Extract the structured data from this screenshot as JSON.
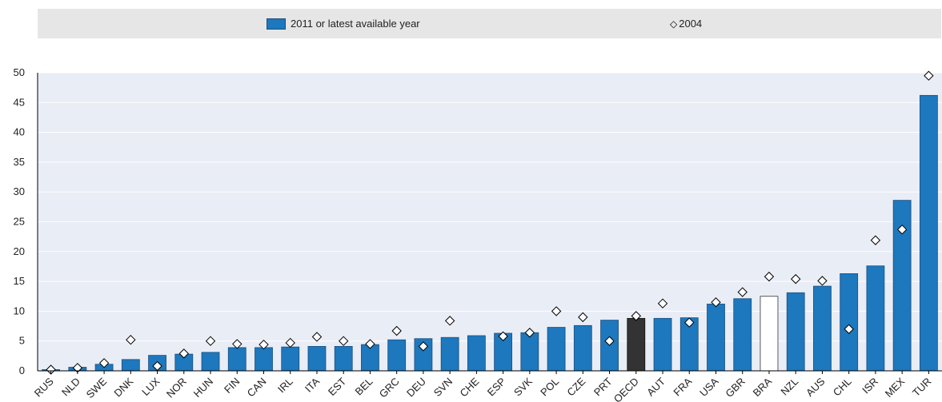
{
  "legend": {
    "series1_label": "2011 or latest available year",
    "series2_label": "2004"
  },
  "colors": {
    "bar": "#1d78bd",
    "bar_stroke": "#1b4e80",
    "oecd_bar": "#333333",
    "bra_bar": "#ffffff",
    "plot_bg": "#e9edf6",
    "grid": "#ffffff"
  },
  "chart_data": {
    "type": "bar",
    "title": "",
    "xlabel": "",
    "ylabel": "",
    "ylim": [
      0,
      50
    ],
    "yticks": [
      0,
      5,
      10,
      15,
      20,
      25,
      30,
      35,
      40,
      45,
      50
    ],
    "grid": true,
    "legend_position": "top",
    "categories": [
      "RUS",
      "NLD",
      "SWE",
      "DNK",
      "LUX",
      "NOR",
      "HUN",
      "FIN",
      "CAN",
      "IRL",
      "ITA",
      "EST",
      "BEL",
      "GRC",
      "DEU",
      "SVN",
      "CHE",
      "ESP",
      "SVK",
      "POL",
      "CZE",
      "PRT",
      "OECD",
      "AUT",
      "FRA",
      "USA",
      "GBR",
      "BRA",
      "NZL",
      "AUS",
      "CHL",
      "ISR",
      "MEX",
      "TUR"
    ],
    "series": [
      {
        "name": "2011 or latest available year",
        "type": "bar",
        "values": [
          0.2,
          0.6,
          1.1,
          1.9,
          2.6,
          2.8,
          3.1,
          3.9,
          3.9,
          4.0,
          4.1,
          4.1,
          4.4,
          5.2,
          5.4,
          5.6,
          5.9,
          6.3,
          6.4,
          7.3,
          7.6,
          8.5,
          8.8,
          8.8,
          8.9,
          11.2,
          12.1,
          12.5,
          13.1,
          14.2,
          16.3,
          17.6,
          28.6,
          46.2
        ]
      },
      {
        "name": "2004",
        "type": "marker",
        "values": [
          0.2,
          0.5,
          1.3,
          5.2,
          0.8,
          2.9,
          5.0,
          4.5,
          4.4,
          4.7,
          5.7,
          5.0,
          4.5,
          6.7,
          4.1,
          8.4,
          null,
          5.8,
          6.4,
          10.0,
          9.0,
          5.0,
          9.2,
          11.3,
          8.1,
          11.5,
          13.2,
          15.8,
          15.4,
          15.1,
          7.0,
          21.9,
          23.7,
          49.5
        ]
      }
    ]
  }
}
